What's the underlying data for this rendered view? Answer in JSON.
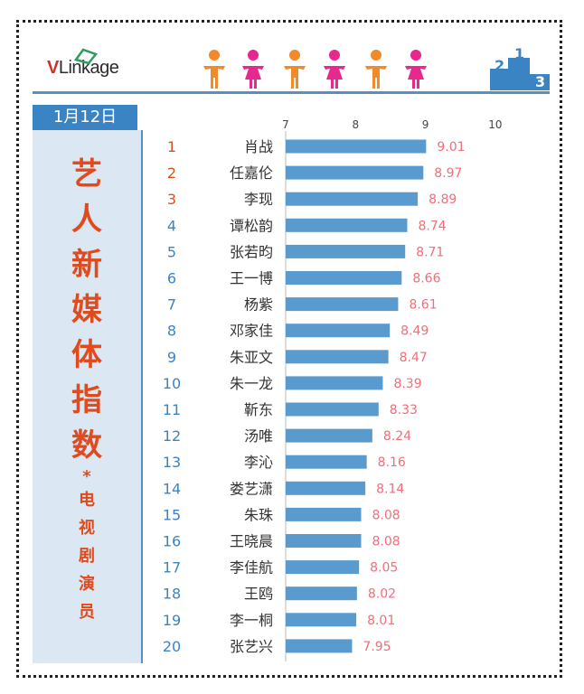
{
  "header": {
    "logo_v": "V",
    "logo_rest": "Linkage",
    "date": "1月12日"
  },
  "side_title": {
    "main": [
      "艺",
      "人",
      "新",
      "媒",
      "体",
      "指",
      "数"
    ],
    "star": "*",
    "sub": [
      "电",
      "视",
      "剧",
      "演",
      "员"
    ]
  },
  "colors": {
    "bar": "#5a9bcf",
    "value_text": "#ef6f7a",
    "rank_top": "#d6521c",
    "rank_rest": "#3b84c4",
    "title": "#e04b1e",
    "person_orange": "#f08a2a",
    "person_pink": "#e6288f"
  },
  "icons": [
    "person-orange-icon",
    "person-pink-icon",
    "person-orange-icon",
    "person-pink-icon",
    "person-orange-icon",
    "person-pink-icon",
    "podium-icon"
  ],
  "chart_data": {
    "type": "bar",
    "orientation": "horizontal",
    "xlim": [
      7,
      10
    ],
    "xticks": [
      "7",
      "8",
      "9",
      "10"
    ],
    "ranks": [
      "1",
      "2",
      "3",
      "4",
      "5",
      "6",
      "7",
      "8",
      "9",
      "10",
      "11",
      "12",
      "13",
      "14",
      "15",
      "16",
      "17",
      "18",
      "19",
      "20"
    ],
    "categories": [
      "肖战",
      "任嘉伦",
      "李现",
      "谭松韵",
      "张若昀",
      "王一博",
      "杨紫",
      "邓家佳",
      "朱亚文",
      "朱一龙",
      "靳东",
      "汤唯",
      "李沁",
      "娄艺潇",
      "朱珠",
      "王晓晨",
      "李佳航",
      "王鸥",
      "李一桐",
      "张艺兴"
    ],
    "values": [
      9.01,
      8.97,
      8.89,
      8.74,
      8.71,
      8.66,
      8.61,
      8.49,
      8.47,
      8.39,
      8.33,
      8.24,
      8.16,
      8.14,
      8.08,
      8.08,
      8.05,
      8.02,
      8.01,
      7.95
    ],
    "value_labels": [
      "9.01",
      "8.97",
      "8.89",
      "8.74",
      "8.71",
      "8.66",
      "8.61",
      "8.49",
      "8.47",
      "8.39",
      "8.33",
      "8.24",
      "8.16",
      "8.14",
      "8.08",
      "8.08",
      "8.05",
      "8.02",
      "8.01",
      "7.95"
    ],
    "grid": false
  }
}
